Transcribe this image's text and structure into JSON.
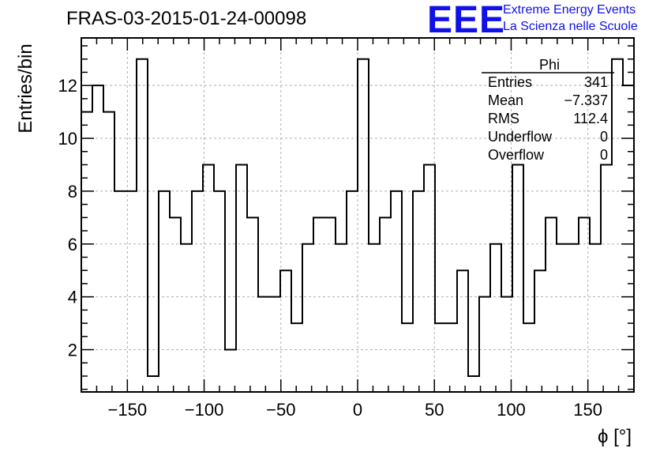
{
  "page": {
    "title": "FRAS-03-2015-01-24-00098",
    "logo_text": "EEE",
    "brand_line1": "Extreme Energy Events",
    "brand_line2": "La Scienza nelle Scuole"
  },
  "stats_box": {
    "name": "Phi",
    "rows": [
      {
        "label": "Entries",
        "value": "341"
      },
      {
        "label": "Mean",
        "value": "−7.337"
      },
      {
        "label": "RMS",
        "value": "112.4"
      },
      {
        "label": "Underflow",
        "value": "0"
      },
      {
        "label": "Overflow",
        "value": "0"
      }
    ]
  },
  "colors": {
    "line": "#000000",
    "grid": "#b0b0b0",
    "logo": "#1010e8"
  },
  "chart_data": {
    "type": "histogram",
    "title": "FRAS-03-2015-01-24-00098",
    "xlabel": "ϕ [°]",
    "ylabel": "Entries/bin",
    "xlim": [
      -180,
      180
    ],
    "ylim": [
      0.4,
      13.8
    ],
    "bin_width": 7.2,
    "bin_edges_start": -180,
    "values": [
      11,
      12,
      11,
      8,
      8,
      13,
      1,
      8,
      7,
      6,
      8,
      9,
      8,
      2,
      9,
      7,
      4,
      4,
      5,
      3,
      6,
      7,
      7,
      6,
      8,
      13,
      6,
      7,
      8,
      3,
      8,
      9,
      3,
      3,
      5,
      1,
      4,
      6,
      4,
      9,
      3,
      5,
      7,
      6,
      6,
      7,
      6,
      9,
      13,
      12
    ],
    "x_ticks": [
      -150,
      -100,
      -50,
      0,
      50,
      100,
      150
    ],
    "x_tick_labels": [
      "−150",
      "−100",
      "−50",
      "0",
      "50",
      "100",
      "150"
    ],
    "y_ticks": [
      2,
      4,
      6,
      8,
      10,
      12
    ],
    "y_tick_labels": [
      "2",
      "4",
      "6",
      "8",
      "10",
      "12"
    ],
    "grid": true,
    "legend_placement": "top-right"
  }
}
